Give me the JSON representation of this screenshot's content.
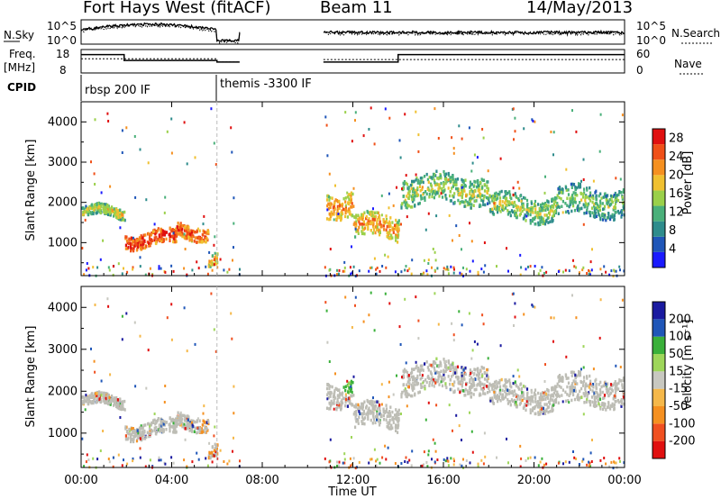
{
  "header": {
    "radar": "Fort Hays West (fitACF)",
    "beam": "Beam 11",
    "date": "14/May/2013"
  },
  "summary": {
    "nsky_label": "N.Sky",
    "nsearch_label": "N.Search",
    "freq_label_1": "Freq.",
    "freq_label_2": "[MHz]",
    "nave_label": "Nave",
    "cpid_label": "CPID",
    "noise_ticks": [
      "10^5",
      "10^0"
    ],
    "freq_ticks": [
      "18",
      "8"
    ],
    "nave_ticks": [
      "60",
      "0"
    ],
    "cpid_segments": [
      {
        "name": "rbsp 200 IF",
        "start_h": 0,
        "end_h": 6.0
      },
      {
        "name": "themis -3300 IF",
        "start_h": 6.0,
        "end_h": 24
      }
    ]
  },
  "colors": {
    "power": [
      "#1a1aff",
      "#1f56b8",
      "#2e8c8c",
      "#4ab07a",
      "#9ad04a",
      "#f0c030",
      "#f59020",
      "#f05018",
      "#e01010"
    ],
    "velocity": [
      "#e01010",
      "#f05020",
      "#f59020",
      "#f5b84a",
      "#c8c8c0",
      "#9ed65a",
      "#3ab03a",
      "#1f56b8",
      "#1a1aa0"
    ],
    "ground": "#bdbdb5"
  },
  "chart_data": [
    {
      "type": "heatmap",
      "panel": "power",
      "ylabel": "Slant Range [km]",
      "yticks": [
        1000,
        2000,
        3000,
        4000
      ],
      "ylim": [
        180,
        4500
      ],
      "xlim": [
        0,
        24
      ],
      "colorbar_label": "Power [dB]",
      "colorbar_ticks": [
        4,
        8,
        12,
        16,
        20,
        24,
        28
      ],
      "colorbar_range": [
        0,
        30
      ],
      "data_gap_hours": [
        7.0,
        10.7
      ],
      "scatter_bands": [
        {
          "t0": 0.0,
          "t1": 1.9,
          "r0": 1650,
          "r1": 1900,
          "level": 16
        },
        {
          "t0": 1.9,
          "t1": 4.2,
          "r0": 950,
          "r1": 1300,
          "level": 26
        },
        {
          "t0": 4.2,
          "t1": 5.6,
          "r0": 1150,
          "r1": 1500,
          "level": 24
        },
        {
          "t0": 5.6,
          "t1": 6.0,
          "r0": 500,
          "r1": 800,
          "level": 18
        },
        {
          "t0": 10.8,
          "t1": 12.0,
          "r0": 1700,
          "r1": 2300,
          "level": 20
        },
        {
          "t0": 12.0,
          "t1": 14.0,
          "r0": 1150,
          "r1": 1700,
          "level": 20
        },
        {
          "t0": 14.1,
          "t1": 18.0,
          "r0": 2000,
          "r1": 2700,
          "level": 14
        },
        {
          "t0": 18.0,
          "t1": 21.0,
          "r0": 1600,
          "r1": 2200,
          "level": 14
        },
        {
          "t0": 21.0,
          "t1": 24.0,
          "r0": 1700,
          "r1": 2400,
          "level": 12
        }
      ]
    },
    {
      "type": "heatmap",
      "panel": "velocity",
      "ylabel": "Slant Range [km]",
      "xlabel": "Time UT",
      "xticks": [
        "00:00",
        "04:00",
        "08:00",
        "12:00",
        "16:00",
        "20:00",
        "00:00"
      ],
      "yticks": [
        1000,
        2000,
        3000,
        4000
      ],
      "ylim": [
        180,
        4500
      ],
      "xlim": [
        0,
        24
      ],
      "colorbar_label": "Velocity [m s⁻¹]",
      "colorbar_ticks": [
        "200",
        "100",
        "50",
        "15",
        "-15",
        "-50",
        "-100",
        "-200"
      ],
      "data_gap_hours": [
        7.0,
        10.7
      ]
    }
  ]
}
